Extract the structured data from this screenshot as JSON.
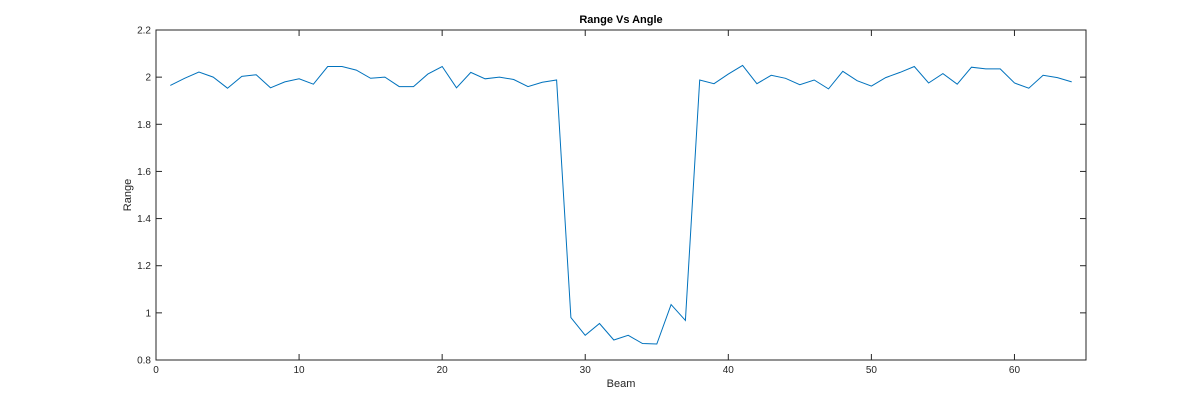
{
  "chart_data": {
    "type": "line",
    "title": "Range Vs Angle",
    "xlabel": "Beam",
    "ylabel": "Range",
    "xlim": [
      0,
      65
    ],
    "ylim": [
      0.8,
      2.2
    ],
    "xticks": [
      0,
      10,
      20,
      30,
      40,
      50,
      60
    ],
    "yticks": [
      0.8,
      1,
      1.2,
      1.4,
      1.6,
      1.8,
      2,
      2.2
    ],
    "xtick_labels": [
      "0",
      "10",
      "20",
      "30",
      "40",
      "50",
      "60"
    ],
    "ytick_labels": [
      "0.8",
      "1",
      "1.2",
      "1.4",
      "1.6",
      "1.8",
      "2",
      "2.2"
    ],
    "grid": false,
    "box": true,
    "line_color": "#0072BD",
    "series": [
      {
        "x": [
          1,
          2,
          3,
          4,
          5,
          6,
          7,
          8,
          9,
          10,
          11,
          12,
          13,
          14,
          15,
          16,
          17,
          18,
          19,
          20,
          21,
          22,
          23,
          24,
          25,
          26,
          27,
          28,
          29,
          30,
          31,
          32,
          33,
          34,
          35,
          36,
          37,
          38,
          39,
          40,
          41,
          42,
          43,
          44,
          45,
          46,
          47,
          48,
          49,
          50,
          51,
          52,
          53,
          54,
          55,
          56,
          57,
          58,
          59,
          60,
          61,
          62,
          63,
          64
        ],
        "values": [
          1.965,
          1.995,
          2.022,
          2.0,
          1.953,
          2.003,
          2.01,
          1.955,
          1.98,
          1.993,
          1.97,
          2.045,
          2.045,
          2.03,
          1.995,
          2.0,
          1.96,
          1.96,
          2.013,
          2.045,
          1.955,
          2.02,
          1.993,
          2.0,
          1.99,
          1.96,
          1.978,
          1.988,
          0.98,
          0.905,
          0.955,
          0.885,
          0.905,
          0.87,
          0.868,
          1.035,
          0.968,
          1.988,
          1.972,
          2.013,
          2.05,
          1.972,
          2.008,
          1.995,
          1.968,
          1.988,
          1.95,
          2.025,
          1.985,
          1.962,
          1.998,
          2.02,
          2.045,
          1.975,
          2.015,
          1.97,
          2.042,
          2.035,
          2.035,
          1.975,
          1.953,
          2.008,
          1.998,
          1.98
        ]
      }
    ]
  }
}
